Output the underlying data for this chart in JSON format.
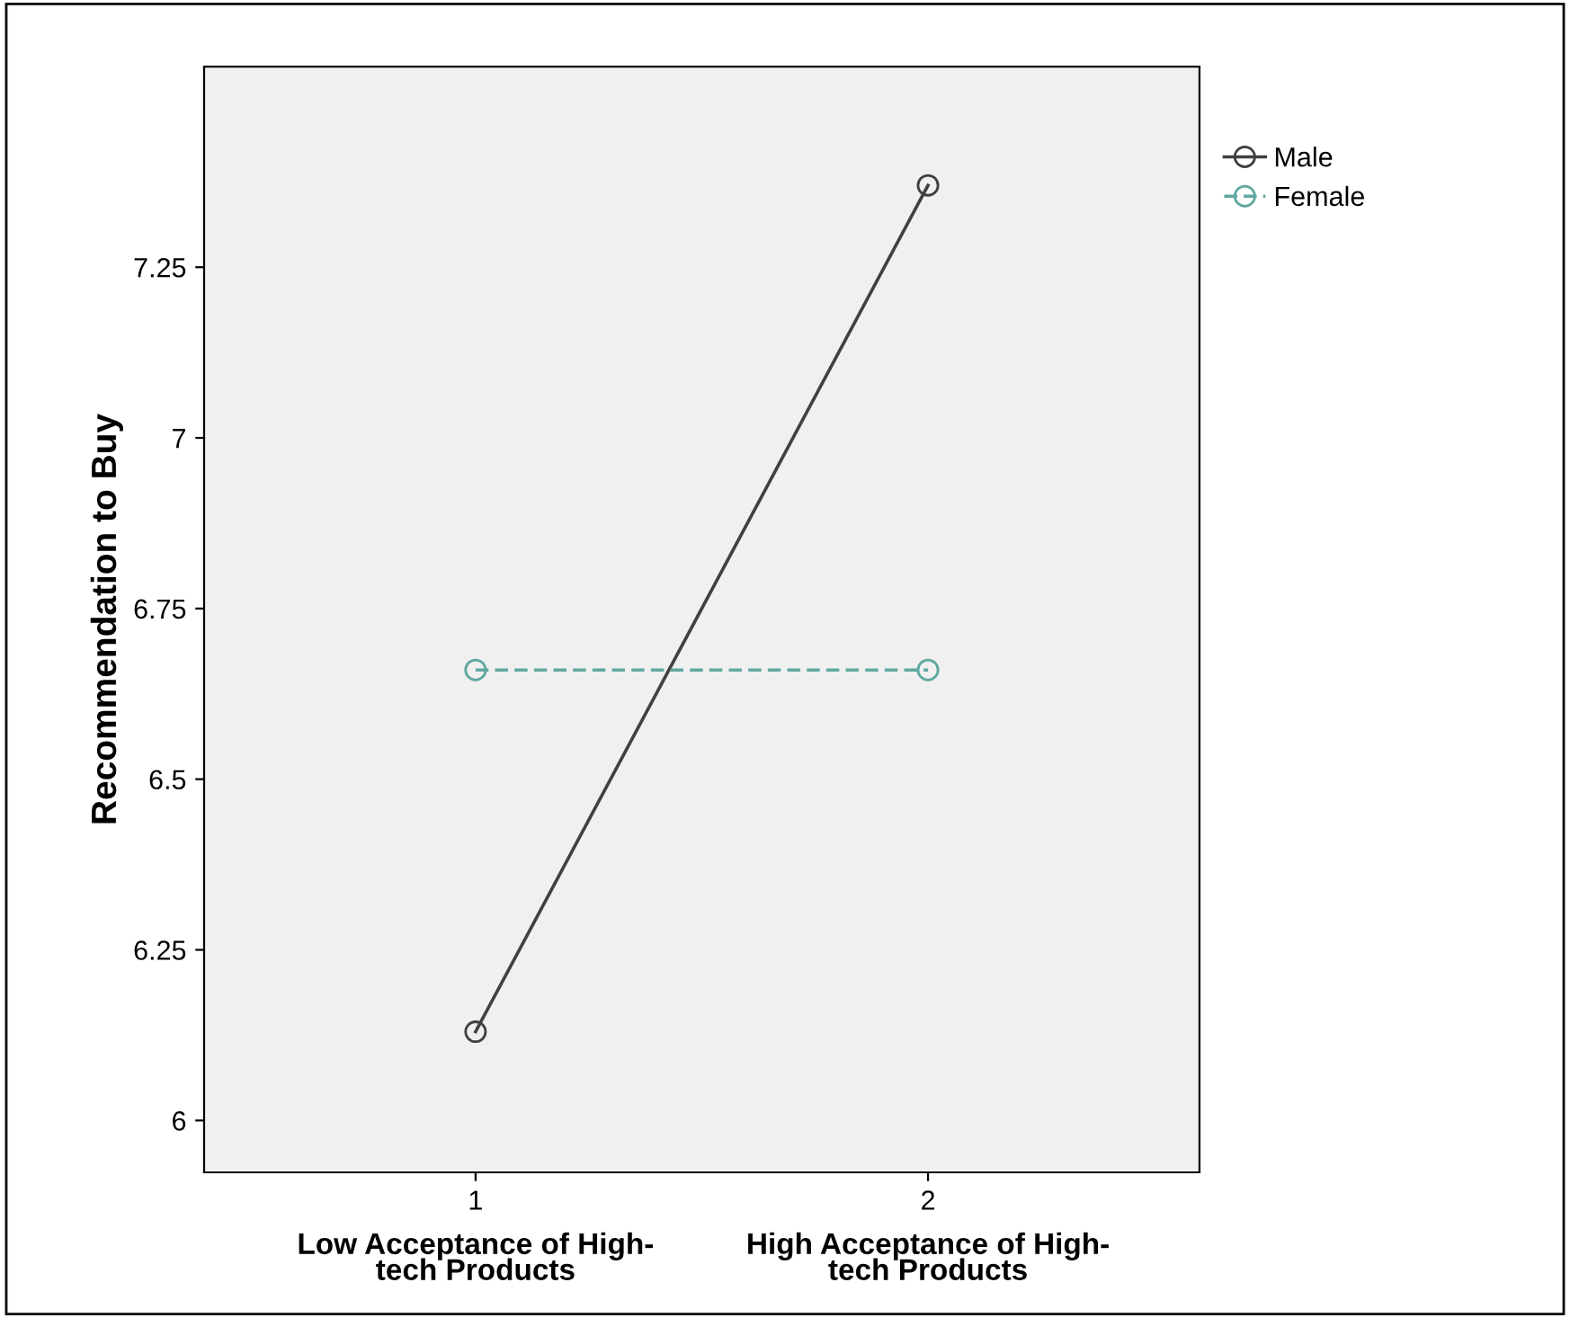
{
  "chart_data": {
    "type": "line",
    "ylabel": "Recommendation to Buy",
    "x": [
      1,
      2
    ],
    "xlim": [
      0.4,
      2.6
    ],
    "xticks": [
      1,
      2
    ],
    "ylim": [
      5.924,
      7.544
    ],
    "yticks": [
      6,
      6.25,
      6.5,
      6.75,
      7,
      7.25
    ],
    "series": [
      {
        "name": "Male",
        "color": "#404040",
        "values": [
          6.13,
          7.37
        ],
        "line_style": "solid"
      },
      {
        "name": "Female",
        "color": "#5fa8a0",
        "values": [
          6.66,
          6.66
        ],
        "line_style": "dashed"
      }
    ],
    "marker": "circle",
    "grid": false,
    "legend": "top right",
    "annotations": [
      "Low Acceptance of High-\ntech Products",
      "High Acceptance of High-\ntech Products"
    ]
  }
}
